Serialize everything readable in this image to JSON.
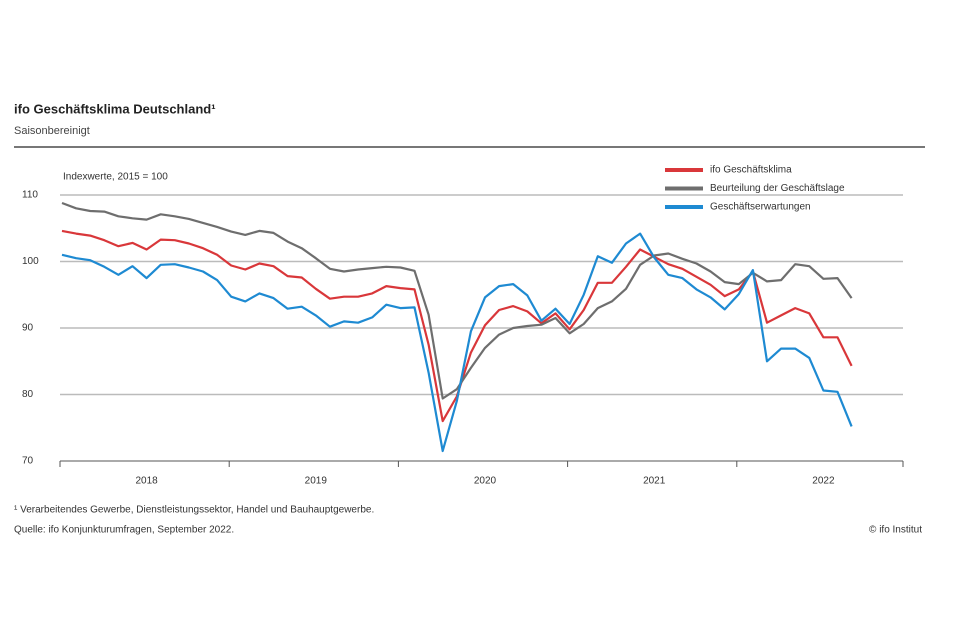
{
  "chart_data": {
    "type": "line",
    "title": "ifo Geschäftsklima Deutschland¹",
    "subtitle": "Saisonbereinigt",
    "y_label": "Indexwerte, 2015 = 100",
    "footnote": "¹ Verarbeitendes Gewerbe, Dienstleistungssektor, Handel und Bauhauptgewerbe.",
    "source": "Quelle: ifo Konjunkturumfragen, September 2022.",
    "copyright": "© ifo Institut",
    "categories": [
      null,
      null,
      null,
      null,
      null,
      null,
      "2018",
      null,
      null,
      null,
      null,
      null,
      null,
      null,
      null,
      null,
      null,
      null,
      "2019",
      null,
      null,
      null,
      null,
      null,
      null,
      null,
      null,
      null,
      null,
      null,
      "2020",
      null,
      null,
      null,
      null,
      null,
      null,
      null,
      null,
      null,
      null,
      null,
      "2021",
      null,
      null,
      null,
      null,
      null,
      null,
      null,
      null,
      null,
      null,
      null,
      "2022",
      null,
      null
    ],
    "series": [
      {
        "name": "ifo Geschäftsklima",
        "color": "#d9373a",
        "values": [
          104.6,
          104.2,
          103.9,
          103.2,
          102.3,
          102.8,
          101.8,
          103.3,
          103.2,
          102.7,
          102.0,
          101.0,
          99.4,
          98.8,
          99.7,
          99.3,
          97.8,
          97.6,
          95.9,
          94.4,
          94.7,
          94.7,
          95.2,
          96.3,
          96.0,
          95.8,
          87.5,
          76.0,
          79.7,
          86.3,
          90.4,
          92.7,
          93.3,
          92.5,
          90.7,
          92.2,
          89.8,
          92.7,
          96.8,
          96.8,
          99.2,
          101.8,
          100.7,
          99.6,
          98.9,
          97.7,
          96.5,
          94.8,
          95.8,
          98.5,
          90.8,
          91.9,
          93.0,
          92.2,
          88.6,
          88.6,
          84.3
        ]
      },
      {
        "name": "Beurteilung der Geschäftslage",
        "color": "#6e6e6e",
        "values": [
          108.8,
          108.0,
          107.6,
          107.5,
          106.8,
          106.5,
          106.3,
          107.1,
          106.8,
          106.4,
          105.8,
          105.2,
          104.5,
          104.0,
          104.6,
          104.3,
          103.0,
          102.0,
          100.5,
          98.9,
          98.5,
          98.8,
          99.0,
          99.2,
          99.1,
          98.6,
          92.0,
          79.4,
          80.8,
          84.0,
          87.0,
          89.0,
          90.0,
          90.3,
          90.5,
          91.5,
          89.2,
          90.6,
          93.0,
          94.0,
          95.9,
          99.5,
          100.9,
          101.2,
          100.4,
          99.7,
          98.5,
          96.9,
          96.6,
          98.3,
          97.0,
          97.2,
          99.6,
          99.3,
          97.4,
          97.5,
          94.5
        ]
      },
      {
        "name": "Geschäftserwartungen",
        "color": "#1e8ad2",
        "values": [
          101.0,
          100.5,
          100.2,
          99.2,
          98.0,
          99.3,
          97.5,
          99.5,
          99.6,
          99.1,
          98.5,
          97.2,
          94.7,
          94.0,
          95.2,
          94.5,
          92.9,
          93.2,
          91.9,
          90.2,
          91.0,
          90.8,
          91.6,
          93.5,
          93.0,
          93.1,
          83.3,
          71.5,
          79.0,
          89.5,
          94.6,
          96.3,
          96.6,
          94.9,
          91.1,
          92.9,
          90.6,
          95.0,
          100.8,
          99.8,
          102.7,
          104.2,
          100.6,
          98.0,
          97.5,
          95.8,
          94.6,
          92.8,
          95.1,
          98.7,
          85.0,
          86.9,
          86.9,
          85.5,
          80.6,
          80.4,
          75.2
        ]
      }
    ],
    "ylim": [
      70,
      110
    ],
    "yticks": [
      70,
      80,
      90,
      100,
      110
    ],
    "grid": true,
    "legend": "top-right"
  }
}
